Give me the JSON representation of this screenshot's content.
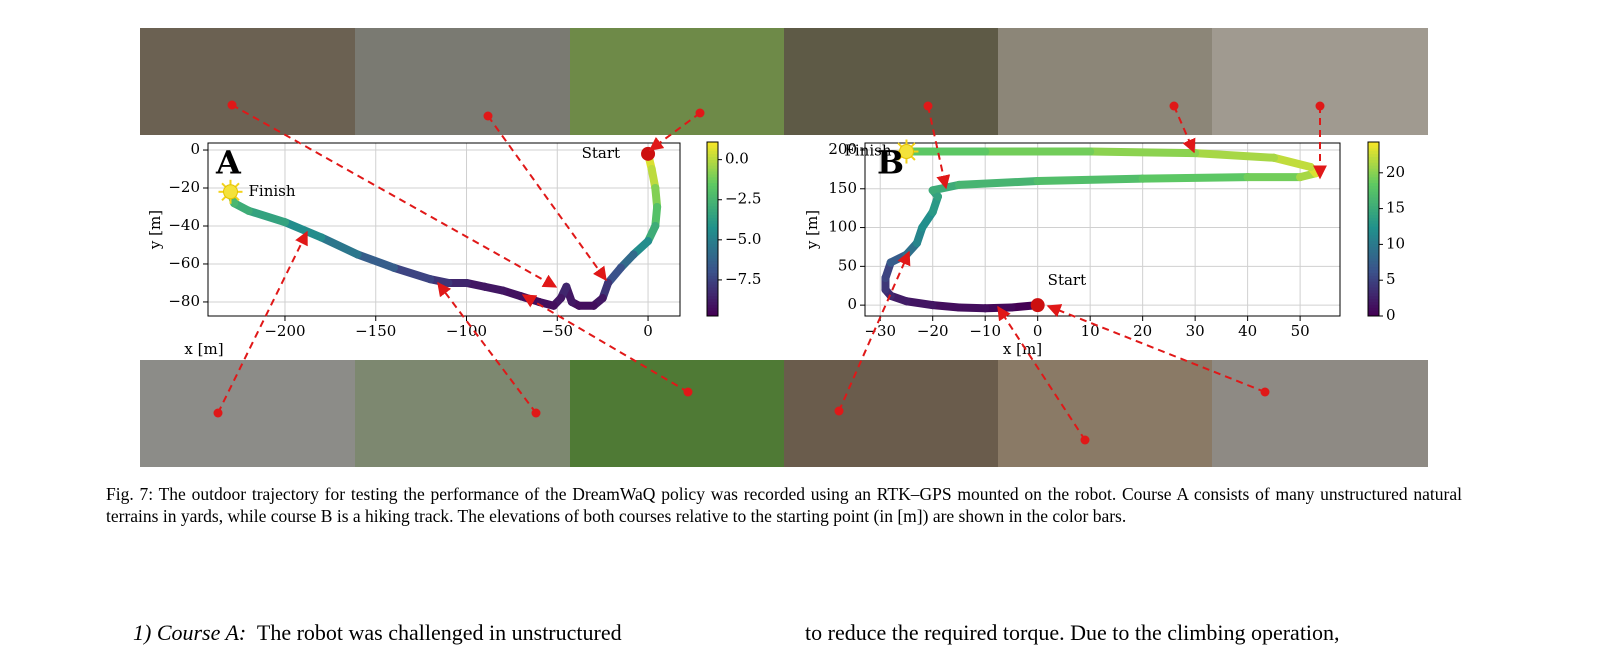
{
  "chart_data": [
    {
      "type": "trajectory",
      "panel_label": "A",
      "xlabel": "x [m]",
      "ylabel": "y [m]",
      "start_label": "Start",
      "finish_label": "Finish",
      "x": [
        0,
        2,
        4,
        5,
        4,
        0,
        -8,
        -15,
        -22,
        -25,
        -30,
        -38,
        -42,
        -45,
        -48,
        -52,
        -60,
        -70,
        -80,
        -90,
        -100,
        -110,
        -120,
        -140,
        -160,
        -180,
        -200,
        -220,
        -228,
        -230
      ],
      "y": [
        -2,
        -10,
        -20,
        -30,
        -40,
        -48,
        -55,
        -62,
        -70,
        -78,
        -82,
        -82,
        -80,
        -72,
        -78,
        -82,
        -80,
        -77,
        -74,
        -72,
        -70,
        -70,
        -68,
        -62,
        -55,
        -46,
        -38,
        -32,
        -28,
        -22
      ],
      "z": [
        0.5,
        0,
        -1,
        -2,
        -3,
        -4.5,
        -6,
        -7,
        -8,
        -9,
        -9.3,
        -9.3,
        -9,
        -8.5,
        -9,
        -9.3,
        -9.3,
        -9.2,
        -9,
        -9,
        -8.5,
        -8,
        -7.5,
        -6.5,
        -5.5,
        -4.5,
        -3.5,
        -3,
        -2.5,
        -2
      ],
      "xlim": [
        -242.4,
        17.6
      ],
      "ylim": [
        -87.4,
        3.7
      ],
      "xticks": [
        {
          "value": -200,
          "label": "−200"
        },
        {
          "value": -150,
          "label": "−150"
        },
        {
          "value": -100,
          "label": "−100"
        },
        {
          "value": -50,
          "label": "−50"
        },
        0
      ],
      "yticks": [
        0,
        {
          "value": -20,
          "label": "−20"
        },
        {
          "value": -40,
          "label": "−40"
        },
        {
          "value": -60,
          "label": "−60"
        },
        {
          "value": -80,
          "label": "−80"
        }
      ],
      "clim": [
        -9.75,
        1.1
      ],
      "cticks": [
        {
          "value": 0,
          "label": "0.0"
        },
        {
          "value": -2.5,
          "label": "−2.5"
        },
        {
          "value": -5,
          "label": "−5.0"
        },
        {
          "value": -7.5,
          "label": "−7.5"
        }
      ],
      "colormap": [
        "#440154",
        "#3b528b",
        "#21918c",
        "#5ec962",
        "#fde725"
      ],
      "grid": true
    },
    {
      "type": "trajectory",
      "panel_label": "B",
      "xlabel": "x [m]",
      "ylabel": "y [m]",
      "start_label": "Start",
      "finish_label": "Finish",
      "x": [
        0,
        -5,
        -10,
        -15,
        -20,
        -25,
        -28,
        -29,
        -29,
        -28,
        -25,
        -23,
        -22,
        -20,
        -19,
        -20,
        -15,
        0,
        20,
        40,
        50,
        53,
        52,
        45,
        30,
        10,
        -10,
        -25
      ],
      "y": [
        0,
        -3,
        -4,
        -3,
        0,
        5,
        12,
        20,
        35,
        55,
        65,
        80,
        100,
        120,
        140,
        148,
        155,
        160,
        163,
        165,
        165,
        170,
        178,
        190,
        196,
        198,
        198,
        198
      ],
      "z": [
        0,
        0.5,
        1,
        1,
        1.5,
        2,
        3,
        4,
        5,
        7,
        9,
        11,
        12,
        13,
        14,
        15,
        16,
        17,
        18,
        19,
        21,
        23,
        22,
        21,
        20,
        19,
        18,
        18
      ],
      "xlim": [
        -32.9,
        57.6
      ],
      "ylim": [
        -14,
        209
      ],
      "xticks": [
        {
          "value": -30,
          "label": "−30"
        },
        {
          "value": -20,
          "label": "−20"
        },
        {
          "value": -10,
          "label": "−10"
        },
        0,
        10,
        20,
        30,
        40,
        50
      ],
      "yticks": [
        0,
        50,
        100,
        150,
        200
      ],
      "clim": [
        0,
        24.3
      ],
      "cticks": [
        0,
        5,
        10,
        15,
        20
      ],
      "colormap": [
        "#440154",
        "#3b528b",
        "#21918c",
        "#5ec962",
        "#fde725"
      ],
      "grid": true
    }
  ],
  "caption": "Fig. 7: The outdoor trajectory for testing the performance of the DreamWaQ policy was recorded using an RTK–GPS mounted on the robot. Course A consists of many unstructured natural terrains in yards, while course B is a hiking track. The elevations of both courses relative to the starting point (in [m]) are shown in the color bars.",
  "body": {
    "left": {
      "label": "1) Course A:",
      "text": "The robot was challenged in unstructured"
    },
    "right": "to reduce the required torque. Due to the climbing operation,"
  }
}
